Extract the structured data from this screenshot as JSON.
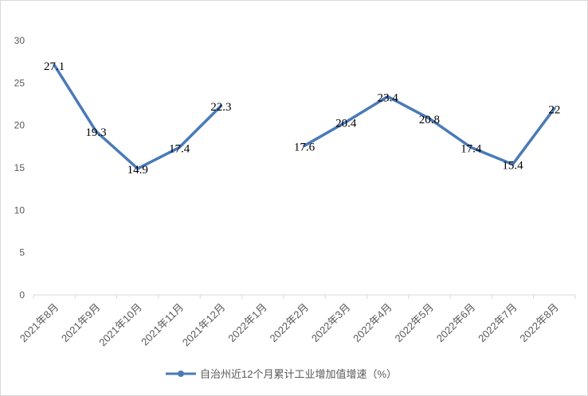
{
  "chart_data": {
    "type": "line",
    "title": "",
    "xlabel": "",
    "ylabel": "",
    "categories": [
      "2021年8月",
      "2021年9月",
      "2021年10月",
      "2021年11月",
      "2021年12月",
      "2022年1月",
      "2022年2月",
      "2022年3月",
      "2022年4月",
      "2022年5月",
      "2022年6月",
      "2022年7月",
      "2022年8月"
    ],
    "series": [
      {
        "name": "自治州近12个月累计工业增加值增速（%）",
        "values": [
          27.1,
          19.3,
          14.9,
          17.4,
          22.3,
          null,
          17.6,
          20.4,
          23.4,
          20.8,
          17.4,
          15.4,
          22
        ],
        "labels": [
          "27.1",
          "19.3",
          "14.9",
          "17.4",
          "22.3",
          "",
          "17.6",
          "20.4",
          "23.4",
          "20.8",
          "17.4",
          "15.4",
          "22"
        ],
        "color": "#4a7ab8"
      }
    ],
    "ylim": [
      0,
      30
    ],
    "yticks": [
      0,
      5,
      10,
      15,
      20,
      25,
      30
    ],
    "grid": false,
    "legend_position": "bottom"
  }
}
